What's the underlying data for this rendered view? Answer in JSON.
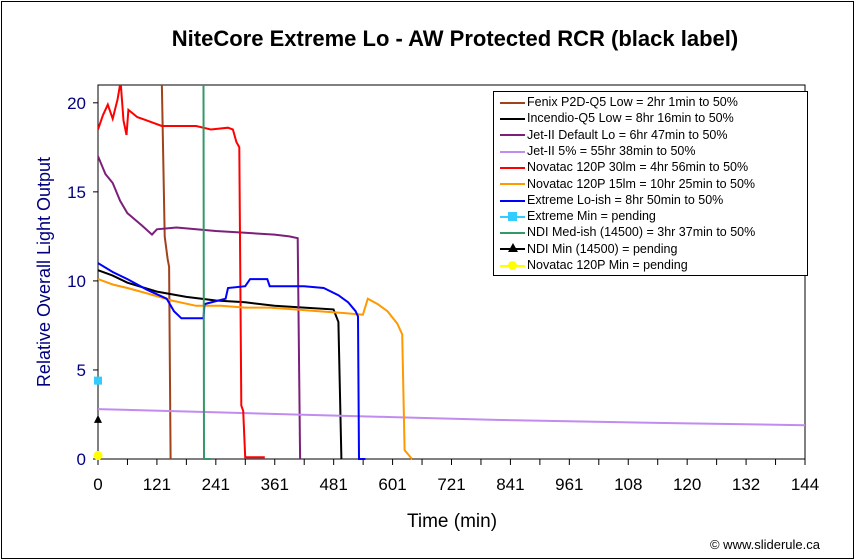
{
  "chart_data": {
    "type": "line",
    "title": "NiteCore Extreme Lo - AW Protected RCR (black label)",
    "xlabel": "Time (min)",
    "ylabel": "Relative Overall Light Output",
    "xlim": [
      0,
      1441
    ],
    "ylim": [
      0,
      21
    ],
    "xtick_labels": [
      "0",
      "121",
      "241",
      "361",
      "481",
      "601",
      "721",
      "841",
      "961",
      "108",
      "120",
      "132",
      "144"
    ],
    "ytick_labels": [
      "0",
      "5",
      "10",
      "15",
      "20"
    ],
    "ytick_values": [
      0,
      5,
      10,
      15,
      20
    ],
    "grid": false,
    "legend_placement": "top-right",
    "credit": "© www.sliderule.ca",
    "series": [
      {
        "name": "Fenix P2D-Q5 Low = 2hr 1min to 50%",
        "color": "#a0421a",
        "points": [
          [
            130,
            21.2
          ],
          [
            136,
            12.5
          ],
          [
            142,
            11.2
          ],
          [
            145,
            10.8
          ],
          [
            148,
            0
          ]
        ]
      },
      {
        "name": "Incendio-Q5 Low = 8hr 16min to 50%",
        "color": "#000000",
        "points": [
          [
            0,
            10.6
          ],
          [
            30,
            10.3
          ],
          [
            60,
            9.9
          ],
          [
            120,
            9.4
          ],
          [
            180,
            9.1
          ],
          [
            240,
            8.9
          ],
          [
            300,
            8.8
          ],
          [
            360,
            8.6
          ],
          [
            420,
            8.5
          ],
          [
            480,
            8.4
          ],
          [
            490,
            7.7
          ],
          [
            496,
            0
          ]
        ]
      },
      {
        "name": "Jet-II Default Lo = 6hr 47min to 50%",
        "color": "#7b1f7b",
        "points": [
          [
            0,
            17
          ],
          [
            15,
            16
          ],
          [
            30,
            15.5
          ],
          [
            45,
            14.5
          ],
          [
            60,
            13.8
          ],
          [
            90,
            13.1
          ],
          [
            110,
            12.6
          ],
          [
            120,
            12.9
          ],
          [
            160,
            13
          ],
          [
            240,
            12.8
          ],
          [
            300,
            12.7
          ],
          [
            360,
            12.6
          ],
          [
            390,
            12.5
          ],
          [
            407,
            12.4
          ],
          [
            412,
            0
          ]
        ]
      },
      {
        "name": "Jet-II 5% = 55hr 38min to 50%",
        "color": "#c08cf0",
        "points": [
          [
            0,
            2.8
          ],
          [
            200,
            2.65
          ],
          [
            400,
            2.5
          ],
          [
            600,
            2.35
          ],
          [
            800,
            2.2
          ],
          [
            1000,
            2.1
          ],
          [
            1200,
            2.0
          ],
          [
            1441,
            1.9
          ]
        ]
      },
      {
        "name": "Novatac 120P 30lm = 4hr 56min to 50%",
        "color": "#ff0000",
        "points": [
          [
            0,
            18.5
          ],
          [
            10,
            19.3
          ],
          [
            20,
            19.9
          ],
          [
            30,
            19.1
          ],
          [
            40,
            20.2
          ],
          [
            46,
            21.2
          ],
          [
            52,
            19
          ],
          [
            58,
            18.2
          ],
          [
            62,
            19.6
          ],
          [
            80,
            19.2
          ],
          [
            100,
            19
          ],
          [
            130,
            18.7
          ],
          [
            160,
            18.7
          ],
          [
            200,
            18.7
          ],
          [
            230,
            18.5
          ],
          [
            265,
            18.6
          ],
          [
            275,
            18.5
          ],
          [
            282,
            17.8
          ],
          [
            288,
            17.5
          ],
          [
            292,
            3
          ],
          [
            296,
            2.7
          ],
          [
            300,
            0.1
          ],
          [
            340,
            0.1
          ]
        ]
      },
      {
        "name": "Novatac 120P 15lm = 10hr 25min to 50%",
        "color": "#ff9900",
        "points": [
          [
            0,
            10.1
          ],
          [
            30,
            9.8
          ],
          [
            60,
            9.6
          ],
          [
            100,
            9.3
          ],
          [
            150,
            8.9
          ],
          [
            200,
            8.6
          ],
          [
            250,
            8.6
          ],
          [
            300,
            8.5
          ],
          [
            350,
            8.5
          ],
          [
            400,
            8.4
          ],
          [
            450,
            8.3
          ],
          [
            500,
            8.2
          ],
          [
            540,
            8.1
          ],
          [
            550,
            9
          ],
          [
            570,
            8.7
          ],
          [
            590,
            8.3
          ],
          [
            610,
            7.6
          ],
          [
            620,
            7
          ],
          [
            625,
            0.5
          ],
          [
            640,
            0
          ]
        ]
      },
      {
        "name": "Extreme Lo-ish = 8hr 50min to 50%",
        "color": "#0000ff",
        "points": [
          [
            0,
            11
          ],
          [
            30,
            10.5
          ],
          [
            60,
            10.1
          ],
          [
            100,
            9.5
          ],
          [
            140,
            9
          ],
          [
            155,
            8.3
          ],
          [
            170,
            7.9
          ],
          [
            215,
            7.9
          ],
          [
            217,
            8.7
          ],
          [
            260,
            9
          ],
          [
            265,
            9.6
          ],
          [
            300,
            9.7
          ],
          [
            310,
            10.1
          ],
          [
            345,
            10.1
          ],
          [
            350,
            9.7
          ],
          [
            420,
            9.7
          ],
          [
            460,
            9.6
          ],
          [
            490,
            9.2
          ],
          [
            510,
            8.8
          ],
          [
            525,
            8.3
          ],
          [
            530,
            8
          ],
          [
            532,
            0
          ],
          [
            545,
            0
          ]
        ]
      },
      {
        "name": "Extreme Min = pending",
        "color": "#33ccff",
        "marker": "square",
        "points": [
          [
            0,
            4.4
          ]
        ]
      },
      {
        "name": "NDI Med-ish (14500) = 3hr 37min to 50%",
        "color": "#339966",
        "points": [
          [
            215,
            21.2
          ],
          [
            216,
            0
          ],
          [
            230,
            0
          ]
        ]
      },
      {
        "name": "NDI Min (14500) = pending",
        "color": "#000000",
        "marker": "triangle",
        "points": [
          [
            0,
            2.2
          ]
        ]
      },
      {
        "name": "Novatac 120P Min = pending",
        "color": "#ffff00",
        "marker": "circle",
        "points": [
          [
            0,
            0.2
          ]
        ]
      }
    ]
  }
}
